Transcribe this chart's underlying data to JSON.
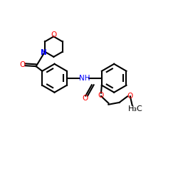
{
  "bg": "#ffffff",
  "N_color": "#0000ff",
  "O_color": "#ff0000",
  "bond_color": "#000000",
  "lw": 1.5,
  "fs": 7.5,
  "xlim": [
    -0.5,
    11.0
  ],
  "ylim": [
    -2.5,
    10.5
  ]
}
